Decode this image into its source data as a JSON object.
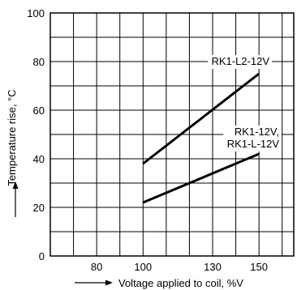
{
  "chart_data": {
    "type": "line",
    "x_axis": {
      "label": "Voltage applied to coil, %V",
      "range": [
        60,
        165
      ],
      "major_ticks": [
        80,
        100,
        130,
        150
      ],
      "tick_labels": [
        "80",
        "100",
        "130",
        "150"
      ],
      "grid_step": 10
    },
    "y_axis": {
      "label": "Temperature rise, °C",
      "range": [
        0,
        100
      ],
      "major_ticks": [
        0,
        20,
        40,
        60,
        80,
        100
      ],
      "tick_labels": [
        "0",
        "20",
        "40",
        "60",
        "80",
        "100"
      ],
      "grid_step": 10
    },
    "grid": true,
    "series": [
      {
        "name": "RK1-L2-12V",
        "points": [
          [
            100,
            38
          ],
          [
            150,
            75
          ]
        ]
      },
      {
        "name": "RK1-12V, RK1-L-12V",
        "label_lines": [
          "RK1-12V,",
          "RK1-L-12V"
        ],
        "points": [
          [
            100,
            22
          ],
          [
            150,
            42
          ]
        ]
      }
    ]
  }
}
